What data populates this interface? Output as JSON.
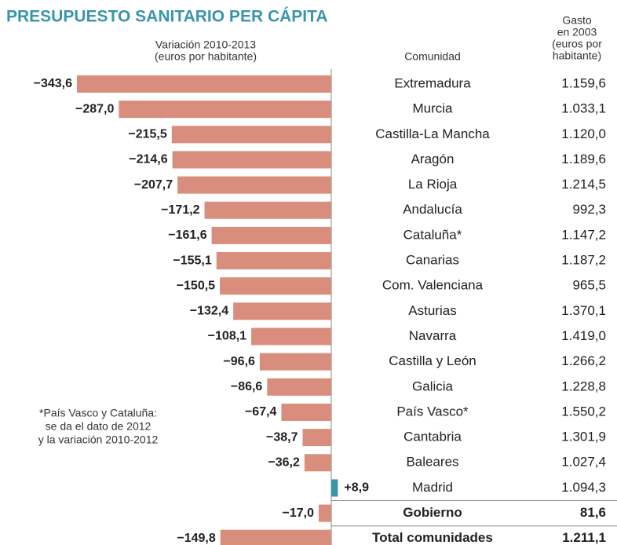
{
  "chart_data": {
    "type": "bar",
    "orientation": "horizontal",
    "title": "PRESUPUESTO SANITARIO PER CÁPITA",
    "axis_label": [
      "Variación 2010-2013",
      "(euros por habitante)"
    ],
    "category_header": "Comunidad",
    "categories": [
      "Extremadura",
      "Murcia",
      "Castilla-La Mancha",
      "Aragón",
      "La Rioja",
      "Andalucía",
      "Cataluña*",
      "Canarias",
      "Com. Valenciana",
      "Asturias",
      "Navarra",
      "Castilla y León",
      "Galicia",
      "País Vasco*",
      "Cantabria",
      "Baleares",
      "Madrid",
      "Gobierno",
      "Total comunidades"
    ],
    "values": [
      -343.6,
      -287.0,
      -215.5,
      -214.6,
      -207.7,
      -171.2,
      -161.6,
      -155.1,
      -150.5,
      -132.4,
      -108.1,
      -96.6,
      -86.6,
      -67.4,
      -38.7,
      -36.2,
      8.9,
      -17.0,
      -149.8
    ],
    "value_labels": [
      "−343,6",
      "−287,0",
      "−215,5",
      "−214,6",
      "−207,7",
      "−171,2",
      "−161,6",
      "−155,1",
      "−150,5",
      "−132,4",
      "−108,1",
      "−96,6",
      "−86,6",
      "−67,4",
      "−38,7",
      "−36,2",
      "+8,9",
      "−17,0",
      "−149,8"
    ],
    "negative_color": "#d98d7c",
    "positive_color": "#3a95aa",
    "bold": [
      false,
      false,
      false,
      false,
      false,
      false,
      false,
      false,
      false,
      false,
      false,
      false,
      false,
      false,
      false,
      false,
      false,
      true,
      true
    ],
    "column": {
      "header": [
        "Gasto",
        "en 2003",
        "(euros por",
        "habitante)"
      ],
      "values": [
        1159.6,
        1033.1,
        1120.0,
        1189.6,
        1214.5,
        992.3,
        1147.2,
        1187.2,
        965.5,
        1370.1,
        1419.0,
        1266.2,
        1228.8,
        1550.2,
        1301.9,
        1027.4,
        1094.3,
        81.6,
        1211.1
      ],
      "value_labels": [
        "1.159,6",
        "1.033,1",
        "1.120,0",
        "1.189,6",
        "1.214,5",
        "992,3",
        "1.147,2",
        "1.187,2",
        "965,5",
        "1.370,1",
        "1.419,0",
        "1.266,2",
        "1.228,8",
        "1.550,2",
        "1.301,9",
        "1.027,4",
        "1.094,3",
        "81,6",
        "1.211,1"
      ]
    },
    "note": [
      "*País Vasco y Cataluña:",
      "se da el dato de 2012",
      "y la variación 2010-2012"
    ]
  }
}
